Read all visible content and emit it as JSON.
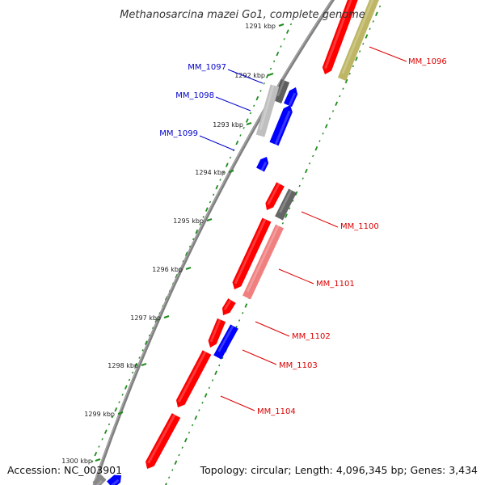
{
  "title": "Methanosarcina mazei Go1, complete genome",
  "accession": "Accession: NC_003901",
  "summary": "Topology: circular; Length: 4,096,345 bp; Genes: 3,434",
  "colors": {
    "forward_gene": "#ff0000",
    "reverse_gene": "#0000ff",
    "other_gene": "#555555",
    "backbone": "#808080",
    "gc_ticks": "#1e8c1e",
    "label_red": "#dd0000",
    "label_blue": "#0000cc"
  },
  "kbp_ticks": [
    "1291 kbp",
    "1292 kbp",
    "1293 kbp",
    "1294 kbp",
    "1295 kbp",
    "1296 kbp",
    "1297 kbp",
    "1298 kbp",
    "1299 kbp",
    "1300 kbp"
  ],
  "gene_labels": [
    {
      "name": "MM_1096",
      "strand": "forward"
    },
    {
      "name": "MM_1097",
      "strand": "reverse"
    },
    {
      "name": "MM_1098",
      "strand": "reverse"
    },
    {
      "name": "MM_1099",
      "strand": "reverse"
    },
    {
      "name": "MM_1100",
      "strand": "forward"
    },
    {
      "name": "MM_1101",
      "strand": "forward"
    },
    {
      "name": "MM_1102",
      "strand": "forward"
    },
    {
      "name": "MM_1103",
      "strand": "forward"
    },
    {
      "name": "MM_1104",
      "strand": "forward"
    }
  ]
}
